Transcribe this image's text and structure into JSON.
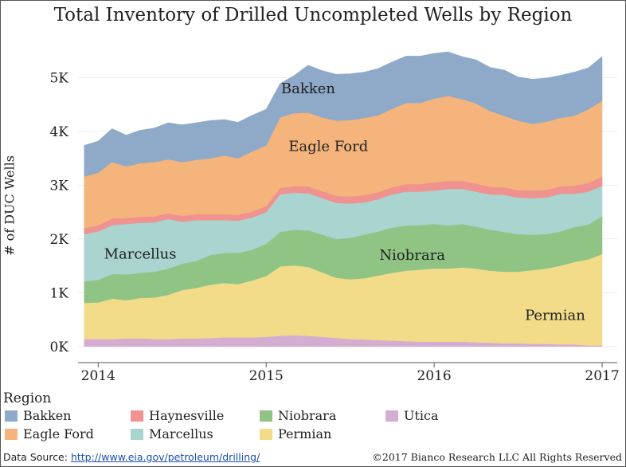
{
  "chart_data": {
    "type": "area",
    "stacked": true,
    "title": "Total Inventory of Drilled Uncompleted Wells by Region",
    "ylabel": "# of DUC Wells",
    "xlabel": "",
    "ylim": [
      -300,
      5850
    ],
    "xlim": [
      2013.88,
      2017.09
    ],
    "y_ticks": [
      {
        "value": 0,
        "label": "0K"
      },
      {
        "value": 1000,
        "label": "1K"
      },
      {
        "value": 2000,
        "label": "2K"
      },
      {
        "value": 3000,
        "label": "3K"
      },
      {
        "value": 4000,
        "label": "4K"
      },
      {
        "value": 5000,
        "label": "5K"
      }
    ],
    "x_ticks": [
      {
        "value": 2014,
        "label": "2014"
      },
      {
        "value": 2015,
        "label": "2015"
      },
      {
        "value": 2016,
        "label": "2016"
      },
      {
        "value": 2017,
        "label": "2017"
      }
    ],
    "x": [
      2013.917,
      2014.0,
      2014.083,
      2014.167,
      2014.25,
      2014.333,
      2014.417,
      2014.5,
      2014.583,
      2014.667,
      2014.75,
      2014.833,
      2014.917,
      2015.0,
      2015.083,
      2015.167,
      2015.25,
      2015.333,
      2015.417,
      2015.5,
      2015.583,
      2015.667,
      2015.75,
      2015.833,
      2015.917,
      2016.0,
      2016.083,
      2016.167,
      2016.25,
      2016.333,
      2016.417,
      2016.5,
      2016.583,
      2016.667,
      2016.75,
      2016.833,
      2016.917,
      2017.0
    ],
    "series": [
      {
        "name": "Utica",
        "color": "#d4aed0",
        "values": [
          140,
          140,
          140,
          150,
          150,
          140,
          140,
          150,
          150,
          160,
          170,
          170,
          170,
          180,
          200,
          210,
          200,
          180,
          160,
          140,
          130,
          120,
          110,
          100,
          90,
          90,
          90,
          90,
          80,
          70,
          60,
          60,
          50,
          50,
          40,
          40,
          20,
          20
        ]
      },
      {
        "name": "Permian",
        "color": "#f2dc8a",
        "values": [
          670,
          680,
          750,
          710,
          750,
          770,
          820,
          900,
          940,
          990,
          1010,
          990,
          1060,
          1130,
          1290,
          1300,
          1280,
          1200,
          1120,
          1110,
          1140,
          1200,
          1260,
          1310,
          1340,
          1360,
          1360,
          1380,
          1370,
          1340,
          1330,
          1330,
          1370,
          1400,
          1460,
          1530,
          1600,
          1700
        ]
      },
      {
        "name": "Niobrara",
        "color": "#8fc485",
        "values": [
          400,
          420,
          460,
          480,
          470,
          480,
          490,
          490,
          500,
          550,
          560,
          580,
          570,
          600,
          640,
          660,
          680,
          700,
          720,
          770,
          810,
          820,
          840,
          840,
          830,
          830,
          800,
          810,
          780,
          760,
          740,
          700,
          660,
          640,
          640,
          650,
          650,
          700
        ]
      },
      {
        "name": "Marcellus",
        "color": "#a9d4d0",
        "values": [
          880,
          900,
          910,
          940,
          930,
          920,
          920,
          780,
          760,
          650,
          610,
          600,
          600,
          590,
          700,
          690,
          690,
          680,
          670,
          640,
          600,
          600,
          620,
          630,
          620,
          620,
          680,
          650,
          650,
          660,
          690,
          680,
          680,
          680,
          700,
          620,
          610,
          570
        ]
      },
      {
        "name": "Haynesville",
        "color": "#ef9290",
        "values": [
          110,
          110,
          120,
          110,
          110,
          110,
          110,
          110,
          110,
          110,
          110,
          110,
          110,
          110,
          120,
          120,
          130,
          130,
          130,
          130,
          130,
          130,
          130,
          140,
          140,
          150,
          150,
          150,
          150,
          140,
          140,
          140,
          140,
          140,
          140,
          150,
          160,
          170
        ]
      },
      {
        "name": "Eagle Ford",
        "color": "#f4b47c",
        "values": [
          960,
          980,
          1050,
          960,
          1000,
          1010,
          1000,
          1000,
          1010,
          1040,
          1090,
          1050,
          1120,
          1130,
          1310,
          1360,
          1370,
          1370,
          1400,
          1420,
          1440,
          1430,
          1460,
          1510,
          1510,
          1560,
          1580,
          1520,
          1490,
          1410,
          1330,
          1290,
          1240,
          1270,
          1270,
          1300,
          1370,
          1410
        ]
      },
      {
        "name": "Bakken",
        "color": "#8fa9c8",
        "values": [
          580,
          590,
          620,
          580,
          610,
          630,
          680,
          690,
          690,
          700,
          670,
          670,
          670,
          670,
          630,
          700,
          880,
          870,
          860,
          860,
          850,
          870,
          870,
          870,
          870,
          840,
          820,
          790,
          810,
          810,
          850,
          810,
          830,
          810,
          790,
          810,
          770,
          820
        ]
      }
    ],
    "region_labels": [
      {
        "series": "Bakken",
        "text": "Bakken",
        "x": 2015.25,
        "y": 4800
      },
      {
        "series": "Eagle Ford",
        "text": "Eagle Ford",
        "x": 2015.37,
        "y": 3720
      },
      {
        "series": "Marcellus",
        "text": "Marcellus",
        "x": 2014.25,
        "y": 1720
      },
      {
        "series": "Niobrara",
        "text": "Niobrara",
        "x": 2015.87,
        "y": 1700
      },
      {
        "series": "Permian",
        "text": "Permian",
        "x": 2016.72,
        "y": 580
      }
    ],
    "grid": true,
    "legend_position": "bottom"
  },
  "legend": {
    "title": "Region",
    "items": [
      {
        "name": "Bakken",
        "color": "#8fa9c8"
      },
      {
        "name": "Haynesville",
        "color": "#ef9290"
      },
      {
        "name": "Niobrara",
        "color": "#8fc485"
      },
      {
        "name": "Utica",
        "color": "#d4aed0"
      },
      {
        "name": "Eagle Ford",
        "color": "#f4b47c"
      },
      {
        "name": "Marcellus",
        "color": "#a9d4d0"
      },
      {
        "name": "Permian",
        "color": "#f2dc8a"
      }
    ]
  },
  "footer": {
    "source_prefix": "Data Source:",
    "source_link": "http://www.eia.gov/petroleum/drilling/",
    "copyright": "©2017 Bianco Research LLC  All Rights Reserved"
  }
}
